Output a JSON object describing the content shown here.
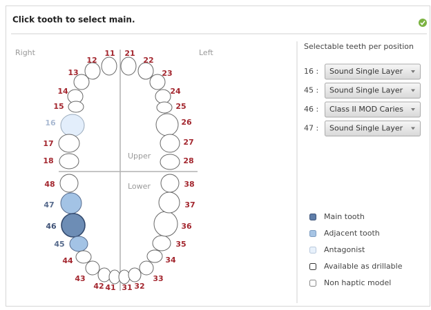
{
  "header": {
    "title": "Click tooth to select main."
  },
  "chart": {
    "right": "Right",
    "left": "Left",
    "upper": "Upper",
    "lower": "Lower",
    "teeth": [
      "11",
      "12",
      "13",
      "14",
      "15",
      "16",
      "17",
      "18",
      "21",
      "22",
      "23",
      "24",
      "25",
      "26",
      "27",
      "28",
      "48",
      "47",
      "46",
      "45",
      "44",
      "43",
      "42",
      "41",
      "31",
      "32",
      "33",
      "34",
      "35",
      "36",
      "37",
      "38"
    ]
  },
  "selection": {
    "title": "Selectable teeth per position",
    "rows": [
      {
        "tooth": "16 :",
        "option": "Sound Single Layer"
      },
      {
        "tooth": "45 :",
        "option": "Sound Single Layer"
      },
      {
        "tooth": "46 :",
        "option": "Class II MOD Caries"
      },
      {
        "tooth": "47 :",
        "option": "Sound Single Layer"
      }
    ]
  },
  "legend": [
    "Main tooth",
    "Adjacent tooth",
    "Antagonist",
    "Available as drillable",
    "Non haptic model"
  ]
}
